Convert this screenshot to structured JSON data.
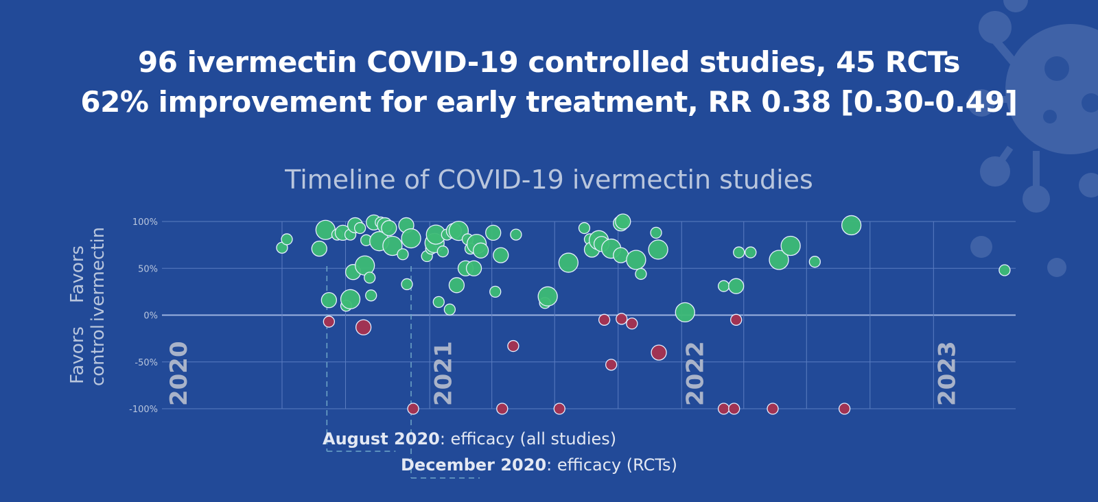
{
  "headline": {
    "line1": "96 ivermectin COVID-19 controlled studies, 45 RCTs",
    "line2": "62% improvement for early treatment, RR 0.38 [0.30-0.49]"
  },
  "side_labels": {
    "favors_ivermectin": [
      "Favors",
      "ivermectin"
    ],
    "favors_control": [
      "Favors",
      "control"
    ]
  },
  "annotations": [
    {
      "date": "2020-08",
      "bold": "August 2020",
      "text": ": efficacy (all studies)"
    },
    {
      "date": "2020-12",
      "bold": "December 2020",
      "text": ": efficacy (RCTs)"
    }
  ],
  "colors": {
    "background": "#224a98",
    "positive": "#3dbb75",
    "negative": "#a8324f",
    "grid": "#5b7dc1",
    "zero_line": "#9cb3e0",
    "year_label": "#a9b3c9"
  },
  "chart_data": {
    "type": "scatter",
    "title": "Timeline of COVID-19 ivermectin studies",
    "ylabel": "",
    "xlim": [
      "2019-12-10",
      "2023-04-30"
    ],
    "ylim": [
      -100,
      100
    ],
    "y_ticks": [
      "100%",
      "50%",
      "0%",
      "-50%",
      "-100%"
    ],
    "y_tick_values": [
      100,
      50,
      0,
      -50,
      -100
    ],
    "year_labels": [
      "2020",
      "2021",
      "2022",
      "2023"
    ],
    "grid": true,
    "points": [
      {
        "date": "2020-06-01",
        "value": 72,
        "size": 1
      },
      {
        "date": "2020-06-08",
        "value": 81,
        "size": 1
      },
      {
        "date": "2020-07-25",
        "value": 71,
        "size": 2
      },
      {
        "date": "2020-08-03",
        "value": 91,
        "size": 3
      },
      {
        "date": "2020-08-08",
        "value": 16,
        "size": 2
      },
      {
        "date": "2020-08-08",
        "value": -7,
        "size": 1
      },
      {
        "date": "2020-08-20",
        "value": 86,
        "size": 1
      },
      {
        "date": "2020-08-28",
        "value": 88,
        "size": 2
      },
      {
        "date": "2020-09-02",
        "value": 10,
        "size": 1
      },
      {
        "date": "2020-09-08",
        "value": 17,
        "size": 3
      },
      {
        "date": "2020-09-08",
        "value": 86,
        "size": 1
      },
      {
        "date": "2020-09-12",
        "value": 46,
        "size": 2
      },
      {
        "date": "2020-09-15",
        "value": 96,
        "size": 2
      },
      {
        "date": "2020-09-22",
        "value": 93,
        "size": 1
      },
      {
        "date": "2020-09-27",
        "value": -13,
        "size": 2
      },
      {
        "date": "2020-09-29",
        "value": 53,
        "size": 3
      },
      {
        "date": "2020-10-01",
        "value": 80,
        "size": 1
      },
      {
        "date": "2020-10-06",
        "value": 40,
        "size": 1
      },
      {
        "date": "2020-10-08",
        "value": 21,
        "size": 1
      },
      {
        "date": "2020-10-12",
        "value": 99,
        "size": 2
      },
      {
        "date": "2020-10-20",
        "value": 79,
        "size": 3
      },
      {
        "date": "2020-10-22",
        "value": 99,
        "size": 1
      },
      {
        "date": "2020-10-28",
        "value": 96,
        "size": 2
      },
      {
        "date": "2020-11-03",
        "value": 93,
        "size": 2
      },
      {
        "date": "2020-11-08",
        "value": 74,
        "size": 3
      },
      {
        "date": "2020-11-23",
        "value": 65,
        "size": 1
      },
      {
        "date": "2020-11-28",
        "value": 96,
        "size": 2
      },
      {
        "date": "2020-11-29",
        "value": 33,
        "size": 1
      },
      {
        "date": "2020-12-05",
        "value": 82,
        "size": 3
      },
      {
        "date": "2020-12-08",
        "value": -100,
        "size": 1
      },
      {
        "date": "2020-12-28",
        "value": 63,
        "size": 1
      },
      {
        "date": "2021-01-03",
        "value": 71,
        "size": 1
      },
      {
        "date": "2021-01-08",
        "value": 77,
        "size": 3
      },
      {
        "date": "2021-01-10",
        "value": 86,
        "size": 3
      },
      {
        "date": "2021-01-14",
        "value": 14,
        "size": 1
      },
      {
        "date": "2021-01-20",
        "value": 68,
        "size": 1
      },
      {
        "date": "2021-01-26",
        "value": 86,
        "size": 1
      },
      {
        "date": "2021-01-30",
        "value": 6,
        "size": 1
      },
      {
        "date": "2021-02-05",
        "value": 90,
        "size": 2
      },
      {
        "date": "2021-02-09",
        "value": 32,
        "size": 2
      },
      {
        "date": "2021-02-12",
        "value": 90,
        "size": 3
      },
      {
        "date": "2021-02-22",
        "value": 50,
        "size": 2
      },
      {
        "date": "2021-02-25",
        "value": 81,
        "size": 1
      },
      {
        "date": "2021-03-01",
        "value": 71,
        "size": 1
      },
      {
        "date": "2021-03-06",
        "value": 50,
        "size": 2
      },
      {
        "date": "2021-03-10",
        "value": 76,
        "size": 3
      },
      {
        "date": "2021-03-16",
        "value": 69,
        "size": 2
      },
      {
        "date": "2021-04-03",
        "value": 88,
        "size": 2
      },
      {
        "date": "2021-04-06",
        "value": 25,
        "size": 1
      },
      {
        "date": "2021-04-14",
        "value": 64,
        "size": 2
      },
      {
        "date": "2021-04-16",
        "value": -100,
        "size": 1
      },
      {
        "date": "2021-05-02",
        "value": -33,
        "size": 1
      },
      {
        "date": "2021-05-06",
        "value": 86,
        "size": 1
      },
      {
        "date": "2021-06-17",
        "value": 13,
        "size": 1
      },
      {
        "date": "2021-06-21",
        "value": 20,
        "size": 3
      },
      {
        "date": "2021-07-08",
        "value": -100,
        "size": 1
      },
      {
        "date": "2021-07-21",
        "value": 56,
        "size": 3
      },
      {
        "date": "2021-08-13",
        "value": 93,
        "size": 1
      },
      {
        "date": "2021-08-21",
        "value": 81,
        "size": 1
      },
      {
        "date": "2021-08-24",
        "value": 70,
        "size": 2
      },
      {
        "date": "2021-09-03",
        "value": 80,
        "size": 3
      },
      {
        "date": "2021-09-07",
        "value": 76,
        "size": 2
      },
      {
        "date": "2021-09-11",
        "value": -5,
        "size": 1
      },
      {
        "date": "2021-09-21",
        "value": 71,
        "size": 3
      },
      {
        "date": "2021-09-21",
        "value": -53,
        "size": 1
      },
      {
        "date": "2021-10-05",
        "value": 98,
        "size": 2
      },
      {
        "date": "2021-10-05",
        "value": 64,
        "size": 2
      },
      {
        "date": "2021-10-06",
        "value": -4,
        "size": 1
      },
      {
        "date": "2021-10-08",
        "value": 100,
        "size": 2
      },
      {
        "date": "2021-10-21",
        "value": -9,
        "size": 1
      },
      {
        "date": "2021-10-27",
        "value": 59,
        "size": 3
      },
      {
        "date": "2021-11-03",
        "value": 44,
        "size": 1
      },
      {
        "date": "2021-11-25",
        "value": 88,
        "size": 1
      },
      {
        "date": "2021-11-28",
        "value": 70,
        "size": 3
      },
      {
        "date": "2021-11-29",
        "value": -40,
        "size": 2
      },
      {
        "date": "2022-01-06",
        "value": 3,
        "size": 3
      },
      {
        "date": "2022-03-03",
        "value": 31,
        "size": 1
      },
      {
        "date": "2022-03-03",
        "value": -100,
        "size": 1
      },
      {
        "date": "2022-03-18",
        "value": -100,
        "size": 1
      },
      {
        "date": "2022-03-21",
        "value": 31,
        "size": 2
      },
      {
        "date": "2022-03-21",
        "value": -5,
        "size": 1
      },
      {
        "date": "2022-03-25",
        "value": 67,
        "size": 1
      },
      {
        "date": "2022-04-11",
        "value": 67,
        "size": 1
      },
      {
        "date": "2022-05-13",
        "value": -100,
        "size": 1
      },
      {
        "date": "2022-05-22",
        "value": 59,
        "size": 3
      },
      {
        "date": "2022-06-08",
        "value": 74,
        "size": 3
      },
      {
        "date": "2022-07-13",
        "value": 57,
        "size": 1
      },
      {
        "date": "2022-08-25",
        "value": -100,
        "size": 1
      },
      {
        "date": "2022-09-04",
        "value": 96,
        "size": 3
      },
      {
        "date": "2023-04-14",
        "value": 48,
        "size": 1
      }
    ]
  }
}
